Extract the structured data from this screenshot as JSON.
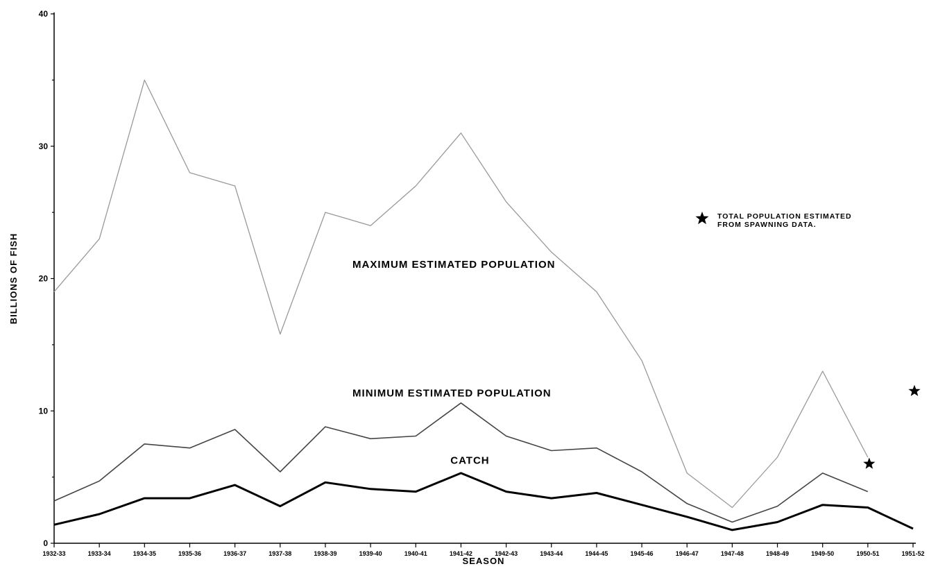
{
  "chart_data": {
    "type": "line",
    "title": "",
    "xlabel": "SEASON",
    "ylabel": "BILLIONS OF FISH",
    "ylim": [
      0,
      40
    ],
    "yticks": [
      0,
      10,
      20,
      30,
      40
    ],
    "grid": false,
    "categories": [
      "1932-33",
      "1933-34",
      "1934-35",
      "1935-36",
      "1936-37",
      "1937-38",
      "1938-39",
      "1939-40",
      "1940-41",
      "1941-42",
      "1942-43",
      "1943-44",
      "1944-45",
      "1945-46",
      "1946-47",
      "1947-48",
      "1948-49",
      "1949-50",
      "1950-51",
      "1951-52"
    ],
    "series": [
      {
        "name": "MAXIMUM ESTIMATED POPULATION",
        "color": "#999999",
        "values": [
          19,
          23,
          35,
          28,
          27,
          15.8,
          25,
          24,
          27,
          31,
          25.8,
          22,
          19,
          13.8,
          5.3,
          2.7,
          6.5,
          13,
          6.5,
          null
        ]
      },
      {
        "name": "MINIMUM ESTIMATED POPULATION",
        "color": "#444444",
        "values": [
          3.2,
          4.7,
          7.5,
          7.2,
          8.6,
          5.4,
          8.8,
          7.9,
          8.1,
          10.6,
          8.1,
          7.0,
          7.2,
          5.4,
          3.0,
          1.6,
          2.8,
          5.3,
          3.9,
          null
        ]
      },
      {
        "name": "CATCH",
        "color": "#000000",
        "values": [
          1.4,
          2.2,
          3.4,
          3.4,
          4.4,
          2.8,
          4.6,
          4.1,
          3.9,
          5.3,
          3.9,
          3.4,
          3.8,
          2.9,
          2.0,
          1.0,
          1.6,
          2.9,
          2.7,
          1.1
        ]
      }
    ],
    "spawning_estimates": [
      {
        "category": "1950-51",
        "value": 6.0
      },
      {
        "category": "1951-52",
        "value": 11.5
      }
    ],
    "legend": {
      "symbol": "star-icon",
      "text_line1": "TOTAL POPULATION ESTIMATED",
      "text_line2": "FROM SPAWNING DATA."
    }
  }
}
